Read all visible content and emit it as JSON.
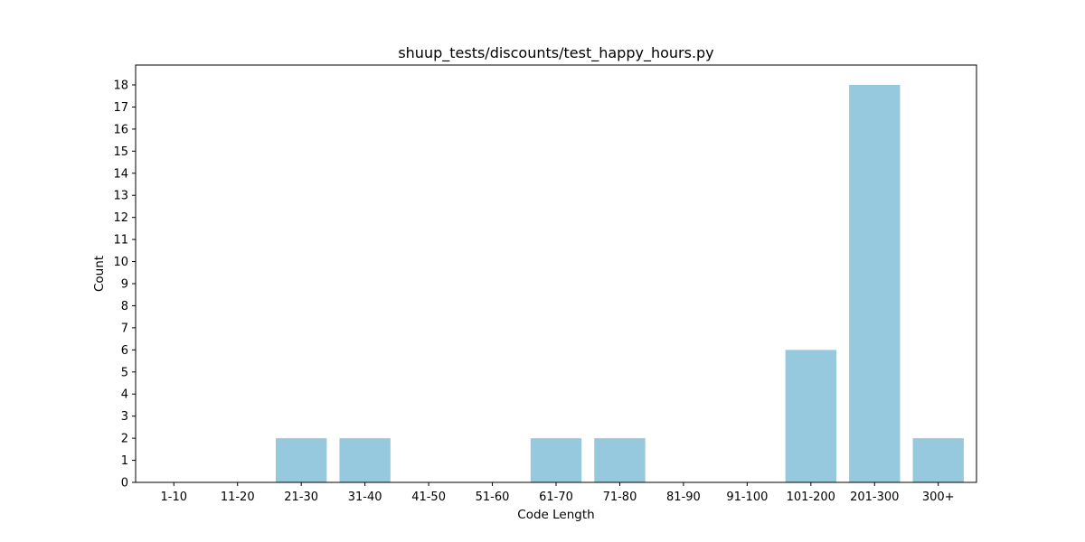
{
  "chart_data": {
    "type": "bar",
    "title": "shuup_tests/discounts/test_happy_hours.py",
    "xlabel": "Code Length",
    "ylabel": "Count",
    "categories": [
      "1-10",
      "11-20",
      "21-30",
      "31-40",
      "41-50",
      "51-60",
      "61-70",
      "71-80",
      "81-90",
      "91-100",
      "101-200",
      "201-300",
      "300+"
    ],
    "values": [
      0,
      0,
      2,
      2,
      0,
      0,
      2,
      2,
      0,
      0,
      6,
      18,
      2
    ],
    "yticks": [
      0,
      1,
      2,
      3,
      4,
      5,
      6,
      7,
      8,
      9,
      10,
      11,
      12,
      13,
      14,
      15,
      16,
      17,
      18
    ],
    "ylim": [
      0,
      18.9
    ],
    "grid": false,
    "legend": "none",
    "bar_color": "#96c9de"
  }
}
